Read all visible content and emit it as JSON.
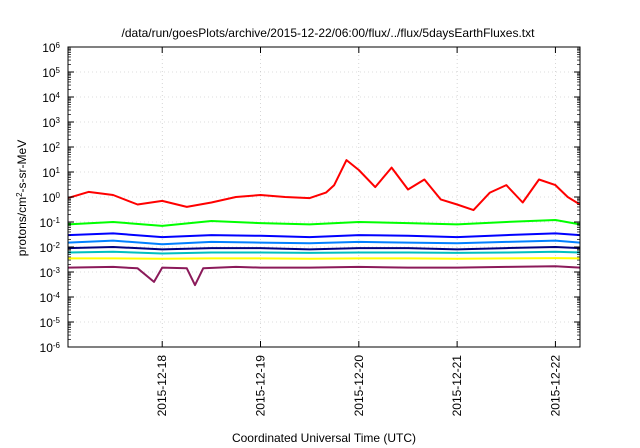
{
  "chart_data": {
    "type": "line",
    "title": "/data/run/goesPlots/archive/2015-12-22/06:00/flux/../flux/5daysEarthFluxes.txt",
    "xlabel": "Coordinated Universal Time (UTC)",
    "ylabel": {
      "parts": [
        "protons/cm",
        "2",
        "-s-sr-MeV"
      ]
    },
    "y_scale": "log",
    "ylim": [
      1e-06,
      1000000.0
    ],
    "y_ticks": [
      {
        "base": "10",
        "exp": "6",
        "value": 1000000.0
      },
      {
        "base": "10",
        "exp": "5",
        "value": 100000.0
      },
      {
        "base": "10",
        "exp": "4",
        "value": 10000.0
      },
      {
        "base": "10",
        "exp": "3",
        "value": 1000.0
      },
      {
        "base": "10",
        "exp": "2",
        "value": 100.0
      },
      {
        "base": "10",
        "exp": "1",
        "value": 10.0
      },
      {
        "base": "10",
        "exp": "0",
        "value": 1
      },
      {
        "base": "10",
        "exp": "-1",
        "value": 0.1
      },
      {
        "base": "10",
        "exp": "-2",
        "value": 0.01
      },
      {
        "base": "10",
        "exp": "-3",
        "value": 0.001
      },
      {
        "base": "10",
        "exp": "-4",
        "value": 0.0001
      },
      {
        "base": "10",
        "exp": "-5",
        "value": 1e-05
      },
      {
        "base": "10",
        "exp": "-6",
        "value": 1e-06
      }
    ],
    "xlim": [
      "2015-12-17 01:00",
      "2015-12-22 06:00"
    ],
    "x_ticks": [
      {
        "label": "2015-12-18",
        "value": "2015-12-18 00:00"
      },
      {
        "label": "2015-12-19",
        "value": "2015-12-19 00:00"
      },
      {
        "label": "2015-12-20",
        "value": "2015-12-20 00:00"
      },
      {
        "label": "2015-12-21",
        "value": "2015-12-21 00:00"
      },
      {
        "label": "2015-12-22",
        "value": "2015-12-22 00:00"
      }
    ],
    "grid": true,
    "series": [
      {
        "color": "#ff0000",
        "x": [
          "2015-12-17 01:00",
          "2015-12-17 06:00",
          "2015-12-17 12:00",
          "2015-12-17 18:00",
          "2015-12-18 00:00",
          "2015-12-18 06:00",
          "2015-12-18 12:00",
          "2015-12-18 18:00",
          "2015-12-19 00:00",
          "2015-12-19 06:00",
          "2015-12-19 12:00",
          "2015-12-19 16:00",
          "2015-12-19 18:00",
          "2015-12-19 21:00",
          "2015-12-20 00:00",
          "2015-12-20 04:00",
          "2015-12-20 08:00",
          "2015-12-20 12:00",
          "2015-12-20 16:00",
          "2015-12-20 20:00",
          "2015-12-21 00:00",
          "2015-12-21 04:00",
          "2015-12-21 08:00",
          "2015-12-21 12:00",
          "2015-12-21 16:00",
          "2015-12-21 20:00",
          "2015-12-22 00:00",
          "2015-12-22 03:00",
          "2015-12-22 06:00"
        ],
        "values": [
          0.9,
          1.6,
          1.2,
          0.5,
          0.7,
          0.4,
          0.6,
          1.0,
          1.2,
          1.0,
          0.9,
          1.5,
          3.0,
          30,
          12,
          2.5,
          15,
          2.0,
          5,
          0.8,
          0.5,
          0.3,
          1.5,
          3,
          0.6,
          5,
          3,
          1.0,
          0.5
        ]
      },
      {
        "color": "#00ff00",
        "x": [
          "2015-12-17 01:00",
          "2015-12-17 12:00",
          "2015-12-18 00:00",
          "2015-12-18 12:00",
          "2015-12-19 00:00",
          "2015-12-19 12:00",
          "2015-12-20 00:00",
          "2015-12-20 12:00",
          "2015-12-21 00:00",
          "2015-12-21 12:00",
          "2015-12-22 00:00",
          "2015-12-22 06:00"
        ],
        "values": [
          0.08,
          0.1,
          0.07,
          0.11,
          0.09,
          0.08,
          0.1,
          0.09,
          0.08,
          0.1,
          0.12,
          0.08
        ]
      },
      {
        "color": "#0000ff",
        "x": [
          "2015-12-17 01:00",
          "2015-12-17 12:00",
          "2015-12-18 00:00",
          "2015-12-18 12:00",
          "2015-12-19 00:00",
          "2015-12-19 12:00",
          "2015-12-20 00:00",
          "2015-12-20 12:00",
          "2015-12-21 00:00",
          "2015-12-21 12:00",
          "2015-12-22 00:00",
          "2015-12-22 06:00"
        ],
        "values": [
          0.03,
          0.035,
          0.025,
          0.03,
          0.028,
          0.025,
          0.03,
          0.028,
          0.025,
          0.03,
          0.035,
          0.03
        ]
      },
      {
        "color": "#0080ff",
        "x": [
          "2015-12-17 01:00",
          "2015-12-17 12:00",
          "2015-12-18 00:00",
          "2015-12-18 12:00",
          "2015-12-19 00:00",
          "2015-12-19 12:00",
          "2015-12-20 00:00",
          "2015-12-20 12:00",
          "2015-12-21 00:00",
          "2015-12-21 12:00",
          "2015-12-22 00:00",
          "2015-12-22 06:00"
        ],
        "values": [
          0.015,
          0.018,
          0.013,
          0.016,
          0.015,
          0.014,
          0.016,
          0.015,
          0.014,
          0.016,
          0.018,
          0.015
        ]
      },
      {
        "color": "#000080",
        "x": [
          "2015-12-17 01:00",
          "2015-12-17 12:00",
          "2015-12-18 00:00",
          "2015-12-18 12:00",
          "2015-12-19 00:00",
          "2015-12-19 12:00",
          "2015-12-20 00:00",
          "2015-12-20 12:00",
          "2015-12-21 00:00",
          "2015-12-21 12:00",
          "2015-12-22 00:00",
          "2015-12-22 06:00"
        ],
        "values": [
          0.009,
          0.01,
          0.008,
          0.009,
          0.009,
          0.008,
          0.009,
          0.009,
          0.008,
          0.009,
          0.01,
          0.009
        ]
      },
      {
        "color": "#00c0c0",
        "x": [
          "2015-12-17 01:00",
          "2015-12-17 12:00",
          "2015-12-18 00:00",
          "2015-12-18 12:00",
          "2015-12-19 00:00",
          "2015-12-19 12:00",
          "2015-12-20 00:00",
          "2015-12-20 12:00",
          "2015-12-21 00:00",
          "2015-12-21 12:00",
          "2015-12-22 00:00",
          "2015-12-22 06:00"
        ],
        "values": [
          0.006,
          0.0065,
          0.0055,
          0.006,
          0.006,
          0.0058,
          0.006,
          0.006,
          0.0058,
          0.006,
          0.0065,
          0.006
        ]
      },
      {
        "color": "#ffff00",
        "x": [
          "2015-12-17 01:00",
          "2015-12-17 12:00",
          "2015-12-18 00:00",
          "2015-12-18 12:00",
          "2015-12-19 00:00",
          "2015-12-19 12:00",
          "2015-12-20 00:00",
          "2015-12-20 12:00",
          "2015-12-21 00:00",
          "2015-12-21 12:00",
          "2015-12-22 00:00",
          "2015-12-22 06:00"
        ],
        "values": [
          0.0035,
          0.0035,
          0.0034,
          0.0035,
          0.0035,
          0.0034,
          0.0035,
          0.0035,
          0.0034,
          0.0035,
          0.0036,
          0.0035
        ]
      },
      {
        "color": "#8b1a5a",
        "x": [
          "2015-12-17 01:00",
          "2015-12-17 12:00",
          "2015-12-17 18:00",
          "2015-12-17 22:00",
          "2015-12-18 00:00",
          "2015-12-18 06:00",
          "2015-12-18 08:00",
          "2015-12-18 10:00",
          "2015-12-18 18:00",
          "2015-12-19 00:00",
          "2015-12-19 12:00",
          "2015-12-20 00:00",
          "2015-12-20 12:00",
          "2015-12-21 00:00",
          "2015-12-21 12:00",
          "2015-12-22 00:00",
          "2015-12-22 06:00"
        ],
        "values": [
          0.0015,
          0.0016,
          0.0014,
          0.0004,
          0.0015,
          0.0014,
          0.0003,
          0.0014,
          0.0016,
          0.0015,
          0.0015,
          0.0016,
          0.0015,
          0.0015,
          0.0016,
          0.0017,
          0.0015
        ]
      }
    ]
  }
}
